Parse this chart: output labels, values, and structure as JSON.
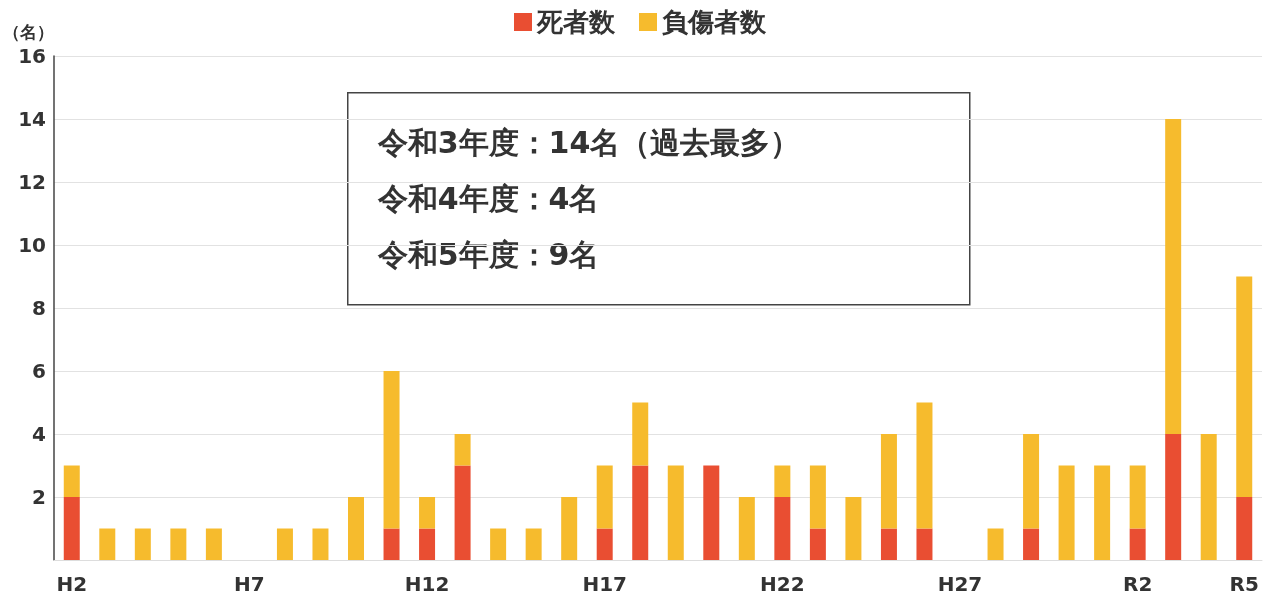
{
  "chart_data": {
    "type": "bar",
    "stacked": true,
    "ylabel": "（名）",
    "categories": [
      "H2",
      null,
      null,
      null,
      null,
      "H7",
      null,
      null,
      null,
      null,
      "H12",
      null,
      null,
      null,
      null,
      "H17",
      null,
      null,
      null,
      null,
      "H22",
      null,
      null,
      null,
      null,
      "H27",
      null,
      null,
      null,
      null,
      "R2",
      null,
      null,
      "R5"
    ],
    "series": [
      {
        "name": "死者数",
        "color": "#e94e32",
        "values": [
          2,
          0,
          0,
          0,
          0,
          0,
          0,
          0,
          0,
          1,
          1,
          3,
          0,
          0,
          0,
          1,
          3,
          0,
          3,
          0,
          2,
          1,
          0,
          1,
          1,
          0,
          0,
          1,
          0,
          0,
          1,
          4,
          0,
          2
        ]
      },
      {
        "name": "負傷者数",
        "color": "#f6bb2d",
        "values": [
          1,
          1,
          1,
          1,
          1,
          0,
          1,
          1,
          2,
          5,
          1,
          1,
          1,
          1,
          2,
          2,
          2,
          3,
          0,
          2,
          1,
          2,
          2,
          3,
          4,
          0,
          1,
          3,
          3,
          3,
          2,
          10,
          4,
          7
        ]
      }
    ],
    "ylim": [
      0,
      16
    ],
    "yticks": [
      {
        "value": 0,
        "label": null
      },
      2,
      4,
      6,
      8,
      10,
      12,
      14,
      16
    ],
    "grid": "y",
    "legend": "top",
    "annotations": [
      "令和3年度：14名（過去最多）",
      "令和4年度：4名",
      "令和5年度：9名"
    ]
  }
}
